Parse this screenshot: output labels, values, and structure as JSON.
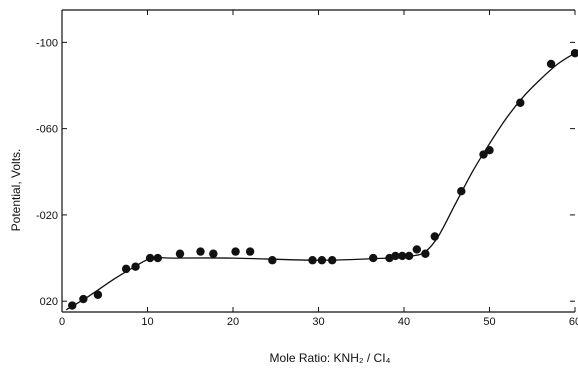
{
  "chart_data": {
    "type": "scatter",
    "title": "",
    "xlabel": "Mole Ratio: KNH₂ / CI₄",
    "ylabel": "Potential, Volts.",
    "xlim": [
      0,
      60
    ],
    "ylim": [
      -1.15,
      0.25
    ],
    "x_ticks": [
      {
        "value": 0,
        "label": "0"
      },
      {
        "value": 10,
        "label": "10"
      },
      {
        "value": 20,
        "label": "20"
      },
      {
        "value": 30,
        "label": "30"
      },
      {
        "value": 40,
        "label": "40"
      },
      {
        "value": 50,
        "label": "50"
      },
      {
        "value": 60,
        "label": "60"
      }
    ],
    "y_ticks": [
      {
        "value": -1.0,
        "label": "-100"
      },
      {
        "value": -0.6,
        "label": "-060"
      },
      {
        "value": -0.2,
        "label": "-020"
      },
      {
        "value": 0.2,
        "label": "020"
      }
    ],
    "grid": false,
    "legend": "none",
    "series": [
      {
        "style": "points",
        "x": [
          1.2,
          2.5,
          4.2,
          7.5,
          8.6,
          10.3,
          11.2,
          13.8,
          16.2,
          17.7,
          20.3,
          22.0,
          24.6,
          29.3,
          30.4,
          31.6,
          36.4,
          38.3,
          39.0,
          39.8,
          40.6,
          41.5,
          42.5,
          43.6,
          46.7,
          49.3,
          50.0,
          53.6,
          57.2,
          60.0
        ],
        "y": [
          0.22,
          0.19,
          0.17,
          0.05,
          0.04,
          0.0,
          0.0,
          -0.02,
          -0.03,
          -0.02,
          -0.03,
          -0.03,
          0.01,
          0.01,
          0.01,
          0.01,
          0.0,
          0.0,
          -0.01,
          -0.01,
          -0.01,
          -0.04,
          -0.02,
          -0.1,
          -0.31,
          -0.48,
          -0.5,
          -0.72,
          -0.9,
          -0.95
        ]
      },
      {
        "style": "line",
        "x": [
          0.5,
          3,
          6,
          8.5,
          10.5,
          13,
          20,
          30,
          38,
          41,
          42.5,
          44,
          46,
          48,
          50,
          52,
          54,
          56,
          58,
          60
        ],
        "y": [
          0.24,
          0.18,
          0.1,
          0.04,
          0.0,
          0.0,
          0.0,
          0.01,
          0.0,
          -0.01,
          -0.03,
          -0.1,
          -0.25,
          -0.4,
          -0.53,
          -0.65,
          -0.75,
          -0.83,
          -0.9,
          -0.95
        ]
      }
    ]
  }
}
